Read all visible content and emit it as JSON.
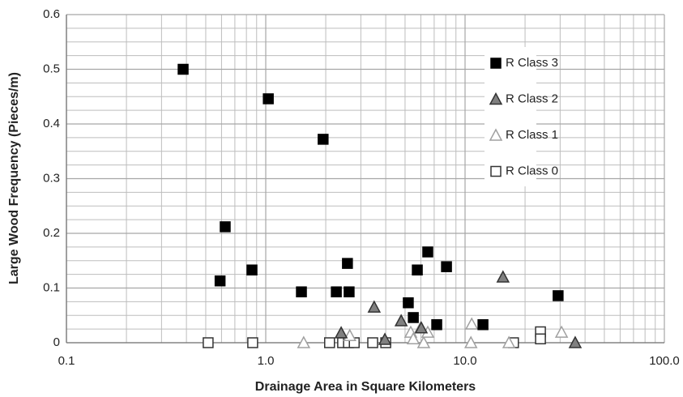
{
  "chart_data": {
    "type": "scatter",
    "xlabel": "Drainage Area in Square Kilometers",
    "ylabel": "Large Wood Frequency (Pieces/m)",
    "xscale": "log",
    "xlim": [
      0.1,
      100
    ],
    "ylim": [
      0,
      0.6
    ],
    "xticks": [
      0.1,
      {
        "value": 1,
        "label": "1.0"
      },
      {
        "value": 10,
        "label": "10.0"
      },
      {
        "value": 100,
        "label": "100.0"
      }
    ],
    "yticks": [
      0,
      0.1,
      0.2,
      0.3,
      0.4,
      0.5,
      0.6
    ],
    "x_minor_ticks": [
      0.2,
      0.3,
      0.4,
      0.5,
      0.6,
      0.7,
      0.8,
      0.9,
      2,
      3,
      4,
      5,
      6,
      7,
      8,
      9,
      20,
      30,
      40,
      50,
      60,
      70,
      80,
      90
    ],
    "y_minor_ticks": [
      0.025,
      0.05,
      0.075,
      0.125,
      0.15,
      0.175,
      0.225,
      0.25,
      0.275,
      0.325,
      0.35,
      0.375,
      0.425,
      0.45,
      0.475,
      0.525,
      0.55,
      0.575
    ],
    "grid": true,
    "legend": "upper right",
    "series": [
      {
        "name": "R Class 3",
        "marker": "square",
        "color": "#000000",
        "edgecolor": "#000000",
        "x": [
          0.385,
          0.626,
          0.59,
          0.853,
          1.03,
          1.51,
          1.94,
          2.26,
          2.57,
          2.62,
          5.19,
          5.5,
          5.76,
          6.5,
          7.21,
          8.07,
          12.3,
          29.3
        ],
        "y": [
          0.5,
          0.212,
          0.113,
          0.133,
          0.446,
          0.093,
          0.372,
          0.093,
          0.145,
          0.093,
          0.073,
          0.046,
          0.133,
          0.166,
          0.033,
          0.139,
          0.033,
          0.086
        ]
      },
      {
        "name": "R Class 2",
        "marker": "triangle",
        "color": "#808080",
        "edgecolor": "#333333",
        "x": [
          2.39,
          3.5,
          3.96,
          4.78,
          6.03,
          15.5,
          35.7
        ],
        "y": [
          0.018,
          0.065,
          0.006,
          0.04,
          0.027,
          0.12,
          0
        ]
      },
      {
        "name": "R Class 1",
        "marker": "triangle",
        "color": "#ffffff",
        "edgecolor": "#a0a0a0",
        "x": [
          1.55,
          2.64,
          5.34,
          5.5,
          5.98,
          6.2,
          6.5,
          10.8,
          10.7,
          30.5,
          16.6
        ],
        "y": [
          0,
          0.013,
          0.019,
          0.007,
          0.027,
          0,
          0.019,
          0.034,
          0,
          0.019,
          0
        ]
      },
      {
        "name": "R Class 0",
        "marker": "square",
        "color": "#ffffff",
        "edgecolor": "#333333",
        "x": [
          0.514,
          0.86,
          2.09,
          2.43,
          2.6,
          2.78,
          3.44,
          4.0,
          17.5,
          23.9,
          23.9
        ],
        "y": [
          0,
          0,
          0,
          0,
          0,
          0,
          0,
          0,
          0,
          0.02,
          0.007
        ]
      }
    ]
  }
}
